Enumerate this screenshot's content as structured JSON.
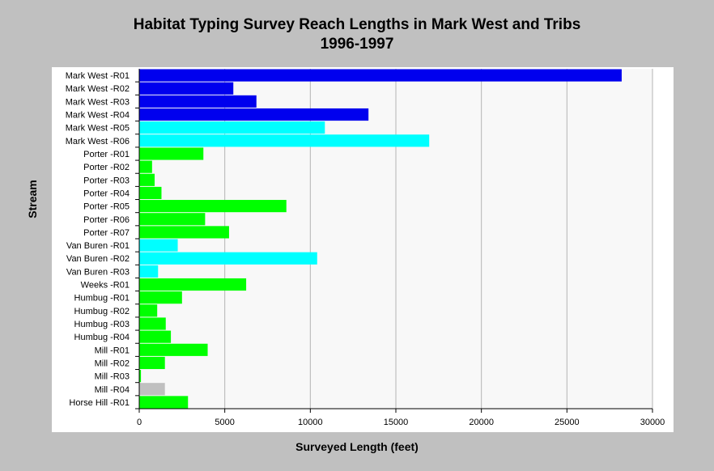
{
  "chart_data": {
    "type": "bar",
    "orientation": "horizontal",
    "title": "Habitat Typing Survey Reach Lengths in Mark West and Tribs",
    "subtitle": "1996-1997",
    "xlabel": "Surveyed Length (feet)",
    "ylabel": "Stream",
    "xlim": [
      0,
      30000
    ],
    "xticks": [
      "0",
      "5000",
      "10000",
      "15000",
      "20000",
      "25000",
      "30000"
    ],
    "grid": "vertical",
    "colors": {
      "blue": "#0000ee",
      "cyan": "#00ffff",
      "green": "#00ff00",
      "gray": "#c0c0c0"
    },
    "categories": [
      "Mark West -R01",
      "Mark West -R02",
      "Mark West -R03",
      "Mark West -R04",
      "Mark West -R05",
      "Mark West -R06",
      "Porter -R01",
      "Porter -R02",
      "Porter -R03",
      "Porter -R04",
      "Porter -R05",
      "Porter -R06",
      "Porter -R07",
      "Van Buren -R01",
      "Van Buren -R02",
      "Van Buren -R03",
      "Weeks -R01",
      "Humbug -R01",
      "Humbug -R02",
      "Humbug -R03",
      "Humbug -R04",
      "Mill -R01",
      "Mill -R02",
      "Mill -R03",
      "Mill -R04",
      "Horse Hill -R01"
    ],
    "values": [
      28200,
      5500,
      6850,
      13400,
      10850,
      16950,
      3750,
      750,
      900,
      1300,
      8600,
      3850,
      5250,
      2250,
      10400,
      1100,
      6250,
      2500,
      1050,
      1550,
      1850,
      4000,
      1500,
      100,
      1500,
      2850
    ],
    "bar_colors": [
      "blue",
      "blue",
      "blue",
      "blue",
      "cyan",
      "cyan",
      "green",
      "green",
      "green",
      "green",
      "green",
      "green",
      "green",
      "cyan",
      "cyan",
      "cyan",
      "green",
      "green",
      "green",
      "green",
      "green",
      "green",
      "green",
      "green",
      "gray",
      "green"
    ]
  }
}
